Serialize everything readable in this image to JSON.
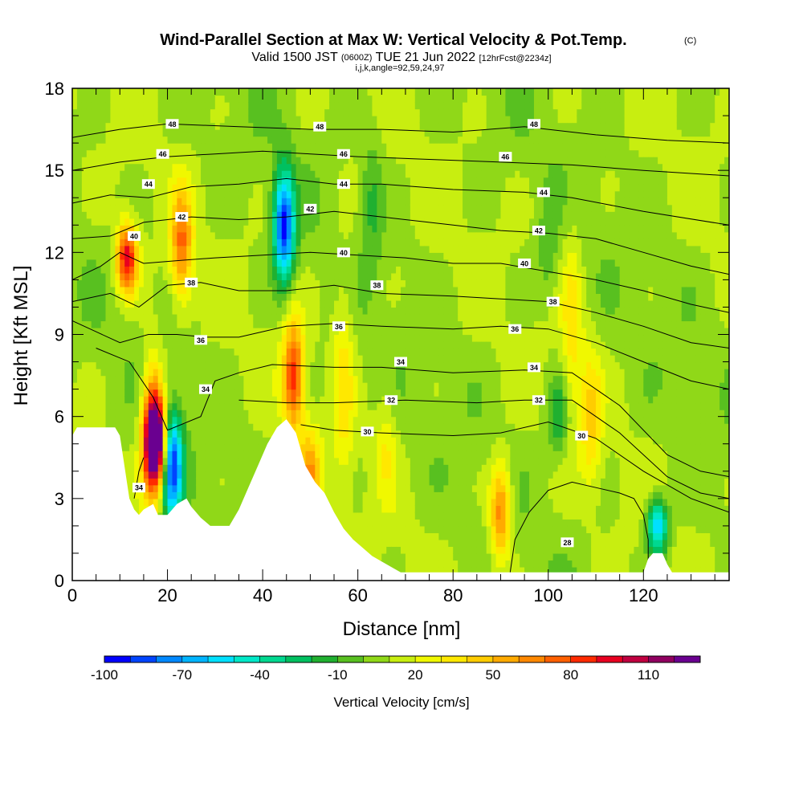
{
  "chart_data": {
    "type": "heatmap",
    "title_main": "Wind-Parallel Section at Max W: Vertical Velocity & Pot.Temp.",
    "title_mark": "(C)",
    "subtitle_a": "Valid 1500 JST",
    "subtitle_b": "(0600Z)",
    "subtitle_c": "TUE 21 Jun 2022",
    "subtitle_d": "[12hrFcst@2234z]",
    "subtitle2": "i,j,k,angle=92,59,24,97",
    "xlabel": "Distance [nm]",
    "ylabel": "Height [Kft MSL]",
    "xlim": [
      0,
      138
    ],
    "ylim": [
      0,
      18
    ],
    "xticks": [
      "0",
      "20",
      "40",
      "60",
      "80",
      "100",
      "120"
    ],
    "yticks": [
      "0",
      "3",
      "6",
      "9",
      "12",
      "15",
      "18"
    ],
    "colorbar": {
      "label": "Vertical Velocity [cm/s]",
      "range": [
        -100,
        130
      ],
      "step": 10,
      "tick_labels": [
        "-100",
        "-70",
        "-40",
        "-10",
        "20",
        "50",
        "80",
        "110"
      ],
      "colors": [
        "#0000ff",
        "#0044ff",
        "#0088ff",
        "#00b4ff",
        "#00e0ff",
        "#00e8c8",
        "#00d890",
        "#00c060",
        "#20b030",
        "#58c020",
        "#90d818",
        "#c8ee10",
        "#f0f800",
        "#ffe800",
        "#ffcc00",
        "#ffaa00",
        "#ff8800",
        "#ff6000",
        "#ff2a00",
        "#e80020",
        "#c00040",
        "#900060",
        "#6a0090"
      ]
    },
    "terrain_kft": [
      [
        0,
        5.3
      ],
      [
        1,
        5.6
      ],
      [
        9,
        5.6
      ],
      [
        10,
        5.3
      ],
      [
        12,
        3.0
      ],
      [
        13,
        2.6
      ],
      [
        14,
        2.4
      ],
      [
        15,
        2.6
      ],
      [
        17,
        2.8
      ],
      [
        18,
        2.4
      ],
      [
        20,
        2.4
      ],
      [
        22,
        2.8
      ],
      [
        24,
        3.0
      ],
      [
        25,
        2.7
      ],
      [
        27,
        2.3
      ],
      [
        29,
        2.0
      ],
      [
        33,
        2.0
      ],
      [
        35,
        2.6
      ],
      [
        37,
        3.4
      ],
      [
        39,
        4.2
      ],
      [
        41,
        5.0
      ],
      [
        43,
        5.6
      ],
      [
        45,
        5.9
      ],
      [
        47,
        5.4
      ],
      [
        49,
        4.2
      ],
      [
        51,
        3.6
      ],
      [
        53,
        3.2
      ],
      [
        55,
        2.5
      ],
      [
        57,
        1.9
      ],
      [
        59,
        1.5
      ],
      [
        61,
        1.2
      ],
      [
        63,
        0.9
      ],
      [
        65,
        0.7
      ],
      [
        67,
        0.5
      ],
      [
        69,
        0.3
      ],
      [
        71,
        0.3
      ],
      [
        120,
        0.3
      ],
      [
        121,
        0.8
      ],
      [
        122,
        1.0
      ],
      [
        124,
        1.0
      ],
      [
        125,
        0.6
      ],
      [
        126,
        0.3
      ],
      [
        138,
        0.3
      ]
    ],
    "velocity_features": [
      {
        "x": 16.5,
        "y": 5.5,
        "w": 35,
        "h": 5.5
      },
      {
        "x": 17.5,
        "y": 5.0,
        "w": 100,
        "h": 3.0
      },
      {
        "x": 17.5,
        "y": 5.5,
        "w": 60,
        "h": 4.0
      },
      {
        "x": 21.0,
        "y": 4.2,
        "w": -95,
        "h": 4.0
      },
      {
        "x": 11.5,
        "y": 11.8,
        "w": 90,
        "h": 2.5
      },
      {
        "x": 23.0,
        "y": 12.3,
        "w": 60,
        "h": 4.0
      },
      {
        "x": 44.5,
        "y": 13.0,
        "w": -100,
        "h": 4.0
      },
      {
        "x": 46.5,
        "y": 7.5,
        "w": 75,
        "h": 4.0
      },
      {
        "x": 50.0,
        "y": 4.0,
        "w": 45,
        "h": 3.0
      },
      {
        "x": 57.0,
        "y": 7.5,
        "w": 25,
        "h": 8.0
      },
      {
        "x": 90.0,
        "y": 2.5,
        "w": 60,
        "h": 3.5
      },
      {
        "x": 105.0,
        "y": 9.5,
        "w": 25,
        "h": 7.0
      },
      {
        "x": 109.0,
        "y": 6.0,
        "w": 30,
        "h": 5.0
      },
      {
        "x": 102.0,
        "y": 6.0,
        "w": -30,
        "h": 3.0
      },
      {
        "x": 123.0,
        "y": 2.0,
        "w": -75,
        "h": 2.0
      },
      {
        "x": 100.0,
        "y": 12.0,
        "w": -15,
        "h": 4.0
      },
      {
        "x": 63.0,
        "y": 14.0,
        "w": -20,
        "h": 5.0
      },
      {
        "x": 66.0,
        "y": 5.0,
        "w": 20,
        "h": 4.0
      }
    ],
    "theta_contours": [
      {
        "label": "30",
        "points": [
          [
            48,
            5.7
          ],
          [
            55,
            5.5
          ],
          [
            65,
            5.4
          ],
          [
            80,
            5.3
          ],
          [
            90,
            5.4
          ],
          [
            100,
            5.8
          ],
          [
            110,
            5.2
          ],
          [
            120,
            4.0
          ],
          [
            130,
            3.0
          ],
          [
            138,
            2.5
          ]
        ],
        "labels_at": [
          [
            62,
            5.45
          ],
          [
            107,
            5.3
          ]
        ]
      },
      {
        "label": "32",
        "points": [
          [
            35,
            6.6
          ],
          [
            45,
            6.5
          ],
          [
            55,
            6.5
          ],
          [
            70,
            6.6
          ],
          [
            85,
            6.5
          ],
          [
            95,
            6.6
          ],
          [
            105,
            6.6
          ],
          [
            115,
            5.4
          ],
          [
            125,
            3.8
          ],
          [
            132,
            3.2
          ],
          [
            138,
            3.0
          ]
        ],
        "labels_at": [
          [
            67,
            6.6
          ],
          [
            98,
            6.6
          ]
        ]
      },
      {
        "label": "34",
        "points": [
          [
            5,
            8.5
          ],
          [
            12,
            8.0
          ],
          [
            17,
            6.7
          ],
          [
            20,
            5.5
          ],
          [
            27,
            6.0
          ],
          [
            30,
            7.3
          ],
          [
            35,
            7.6
          ],
          [
            42,
            7.9
          ],
          [
            55,
            7.8
          ],
          [
            65,
            7.8
          ],
          [
            80,
            7.6
          ],
          [
            95,
            7.7
          ],
          [
            105,
            7.6
          ],
          [
            115,
            6.4
          ],
          [
            125,
            4.6
          ],
          [
            132,
            4.0
          ],
          [
            138,
            3.8
          ]
        ],
        "labels_at": [
          [
            28,
            7.0
          ],
          [
            69,
            8.0
          ],
          [
            97,
            7.8
          ]
        ]
      },
      {
        "label": "36",
        "points": [
          [
            0,
            9.5
          ],
          [
            5,
            9.1
          ],
          [
            10,
            8.7
          ],
          [
            16,
            9.0
          ],
          [
            22,
            9.0
          ],
          [
            28,
            8.9
          ],
          [
            35,
            8.9
          ],
          [
            45,
            9.3
          ],
          [
            55,
            9.4
          ],
          [
            65,
            9.3
          ],
          [
            80,
            9.2
          ],
          [
            90,
            9.3
          ],
          [
            100,
            9.2
          ],
          [
            110,
            8.7
          ],
          [
            120,
            8.0
          ],
          [
            130,
            7.3
          ],
          [
            138,
            7.0
          ]
        ],
        "labels_at": [
          [
            27,
            8.8
          ],
          [
            56,
            9.3
          ],
          [
            93,
            9.2
          ]
        ]
      },
      {
        "label": "38",
        "points": [
          [
            0,
            10.2
          ],
          [
            8,
            10.5
          ],
          [
            14,
            10.0
          ],
          [
            20,
            10.8
          ],
          [
            27,
            10.9
          ],
          [
            35,
            10.6
          ],
          [
            45,
            10.6
          ],
          [
            55,
            10.8
          ],
          [
            65,
            10.5
          ],
          [
            80,
            10.4
          ],
          [
            90,
            10.3
          ],
          [
            100,
            10.2
          ],
          [
            110,
            9.8
          ],
          [
            120,
            9.3
          ],
          [
            130,
            8.7
          ],
          [
            138,
            8.5
          ]
        ],
        "labels_at": [
          [
            25,
            10.9
          ],
          [
            64,
            10.8
          ],
          [
            101,
            10.2
          ]
        ]
      },
      {
        "label": "40",
        "points": [
          [
            0,
            11.0
          ],
          [
            6,
            11.5
          ],
          [
            10,
            12.0
          ],
          [
            15,
            11.6
          ],
          [
            22,
            11.7
          ],
          [
            30,
            11.8
          ],
          [
            40,
            11.9
          ],
          [
            50,
            12.0
          ],
          [
            60,
            11.9
          ],
          [
            70,
            11.8
          ],
          [
            80,
            11.6
          ],
          [
            90,
            11.6
          ],
          [
            100,
            11.3
          ],
          [
            110,
            11.0
          ],
          [
            120,
            10.6
          ],
          [
            130,
            10.1
          ],
          [
            138,
            9.8
          ]
        ],
        "labels_at": [
          [
            13,
            12.6
          ],
          [
            57,
            12.0
          ],
          [
            95,
            11.6
          ]
        ]
      },
      {
        "label": "42",
        "points": [
          [
            0,
            12.5
          ],
          [
            8,
            12.6
          ],
          [
            15,
            13.1
          ],
          [
            25,
            13.3
          ],
          [
            35,
            13.2
          ],
          [
            45,
            13.3
          ],
          [
            55,
            13.5
          ],
          [
            65,
            13.3
          ],
          [
            80,
            13.0
          ],
          [
            90,
            12.8
          ],
          [
            100,
            12.7
          ],
          [
            110,
            12.5
          ],
          [
            120,
            12.0
          ],
          [
            130,
            11.5
          ],
          [
            138,
            11.2
          ]
        ],
        "labels_at": [
          [
            23,
            13.3
          ],
          [
            50,
            13.6
          ],
          [
            98,
            12.8
          ]
        ]
      },
      {
        "label": "44",
        "points": [
          [
            0,
            13.8
          ],
          [
            8,
            14.1
          ],
          [
            16,
            14.0
          ],
          [
            25,
            14.4
          ],
          [
            35,
            14.5
          ],
          [
            45,
            14.7
          ],
          [
            55,
            14.5
          ],
          [
            65,
            14.5
          ],
          [
            80,
            14.3
          ],
          [
            95,
            14.2
          ],
          [
            105,
            14.0
          ],
          [
            120,
            13.5
          ],
          [
            138,
            13.0
          ]
        ],
        "labels_at": [
          [
            16,
            14.5
          ],
          [
            57,
            14.5
          ],
          [
            99,
            14.2
          ]
        ]
      },
      {
        "label": "46",
        "points": [
          [
            0,
            15.0
          ],
          [
            10,
            15.3
          ],
          [
            20,
            15.5
          ],
          [
            30,
            15.6
          ],
          [
            40,
            15.7
          ],
          [
            50,
            15.6
          ],
          [
            60,
            15.5
          ],
          [
            75,
            15.4
          ],
          [
            90,
            15.3
          ],
          [
            105,
            15.2
          ],
          [
            120,
            15.0
          ],
          [
            138,
            14.8
          ]
        ],
        "labels_at": [
          [
            19,
            15.6
          ],
          [
            57,
            15.6
          ],
          [
            91,
            15.5
          ]
        ]
      },
      {
        "label": "48",
        "points": [
          [
            0,
            16.2
          ],
          [
            10,
            16.5
          ],
          [
            20,
            16.7
          ],
          [
            35,
            16.6
          ],
          [
            50,
            16.5
          ],
          [
            65,
            16.5
          ],
          [
            80,
            16.4
          ],
          [
            95,
            16.6
          ],
          [
            110,
            16.3
          ],
          [
            125,
            16.1
          ],
          [
            138,
            16.0
          ]
        ],
        "labels_at": [
          [
            21,
            16.7
          ],
          [
            52,
            16.6
          ],
          [
            97,
            16.7
          ]
        ]
      },
      {
        "label": "28",
        "points": [
          [
            92,
            0.3
          ],
          [
            93,
            1.5
          ],
          [
            96,
            2.5
          ],
          [
            100,
            3.3
          ],
          [
            105,
            3.6
          ],
          [
            110,
            3.4
          ],
          [
            115,
            3.2
          ],
          [
            118,
            3.0
          ],
          [
            120,
            2.4
          ],
          [
            121,
            1.5
          ],
          [
            121,
            0.3
          ]
        ],
        "labels_at": [
          [
            104,
            1.4
          ]
        ]
      },
      {
        "label": "34",
        "points": [
          [
            13,
            3.0
          ],
          [
            14,
            4.0
          ],
          [
            15,
            4.5
          ]
        ],
        "labels_at": [
          [
            14,
            3.4
          ]
        ]
      }
    ]
  }
}
